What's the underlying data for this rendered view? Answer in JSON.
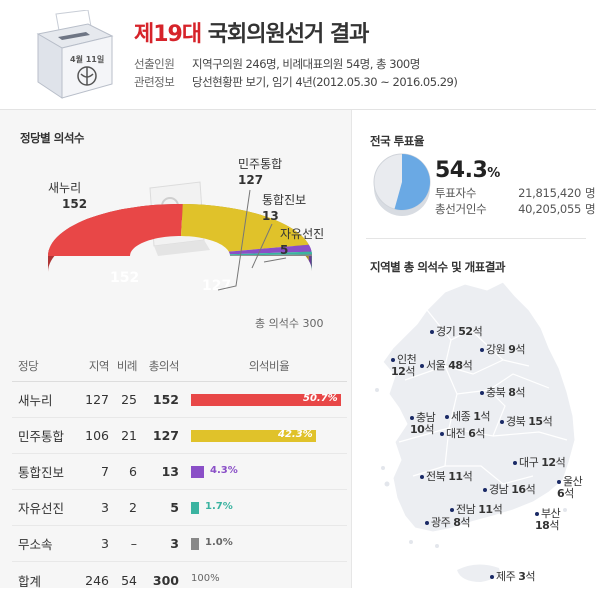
{
  "header": {
    "title_highlight": "제19대",
    "title_rest": " 국회의원선거 결과",
    "ballot_date": "4월 11일",
    "info": [
      {
        "label": "선출인원",
        "value": "지역구의원 246명, 비례대표의원 54명, 총 300명"
      },
      {
        "label": "관련정보",
        "value": "당선현황판 보기, 임기 4년(2012.05.30 ~ 2016.05.29)"
      }
    ]
  },
  "seats_section": {
    "title": "정당별 의석수",
    "total_label": "총 의석수 300",
    "labels": [
      {
        "name": "새누리",
        "seats": "152"
      },
      {
        "name": "민주통합",
        "seats": "127"
      },
      {
        "name": "통합진보",
        "seats": "13"
      },
      {
        "name": "자유선진",
        "seats": "5"
      }
    ],
    "inner_labels": [
      "152",
      "127"
    ]
  },
  "chart_data": {
    "type": "pie",
    "title": "정당별 의석수",
    "categories": [
      "새누리",
      "민주통합",
      "통합진보",
      "자유선진",
      "무소속"
    ],
    "values": [
      152,
      127,
      13,
      5,
      3
    ],
    "total": 300,
    "colors": [
      "#e84747",
      "#e0c22a",
      "#8a4fc7",
      "#3ab3a0",
      "#888888"
    ]
  },
  "table": {
    "headers": [
      "정당",
      "지역",
      "비례",
      "총의석",
      "의석비율"
    ],
    "rows": [
      {
        "name": "새누리",
        "region": "127",
        "prop": "25",
        "total": "152",
        "pct_label": "50.7%",
        "pct": 50.7,
        "color": "#e84747"
      },
      {
        "name": "민주통합",
        "region": "106",
        "prop": "21",
        "total": "127",
        "pct_label": "42.3%",
        "pct": 42.3,
        "color": "#e0c22a"
      },
      {
        "name": "통합진보",
        "region": "7",
        "prop": "6",
        "total": "13",
        "pct_label": "4.3%",
        "pct": 4.3,
        "color": "#8a4fc7"
      },
      {
        "name": "자유선진",
        "region": "3",
        "prop": "2",
        "total": "5",
        "pct_label": "1.7%",
        "pct": 1.7,
        "color": "#3ab3a0"
      },
      {
        "name": "무소속",
        "region": "3",
        "prop": "–",
        "total": "3",
        "pct_label": "1.0%",
        "pct": 1.0,
        "color": "#888888"
      },
      {
        "name": "합계",
        "region": "246",
        "prop": "54",
        "total": "300",
        "pct_label": "100%",
        "pct": 0,
        "color": "#888888"
      }
    ]
  },
  "turnout": {
    "title": "전국 투표율",
    "pct_value": "54.3",
    "pct_unit": "%",
    "pct": 54.3,
    "rows": [
      {
        "label": "투표자수",
        "value": "21,815,420",
        "unit": "명"
      },
      {
        "label": "총선거인수",
        "value": "40,205,055",
        "unit": "명"
      }
    ]
  },
  "regions": {
    "title": "지역별 총 의석수 및 개표결과",
    "suffix": "석",
    "items": [
      {
        "name": "경기",
        "seats": "52"
      },
      {
        "name": "인천",
        "seats": "12"
      },
      {
        "name": "서울",
        "seats": "48"
      },
      {
        "name": "강원",
        "seats": "9"
      },
      {
        "name": "충북",
        "seats": "8"
      },
      {
        "name": "충남",
        "seats": "10"
      },
      {
        "name": "세종",
        "seats": "1"
      },
      {
        "name": "대전",
        "seats": "6"
      },
      {
        "name": "경북",
        "seats": "15"
      },
      {
        "name": "대구",
        "seats": "12"
      },
      {
        "name": "전북",
        "seats": "11"
      },
      {
        "name": "울산",
        "seats": "6"
      },
      {
        "name": "경남",
        "seats": "16"
      },
      {
        "name": "부산",
        "seats": "18"
      },
      {
        "name": "전남",
        "seats": "11"
      },
      {
        "name": "광주",
        "seats": "8"
      },
      {
        "name": "제주",
        "seats": "3"
      }
    ]
  }
}
